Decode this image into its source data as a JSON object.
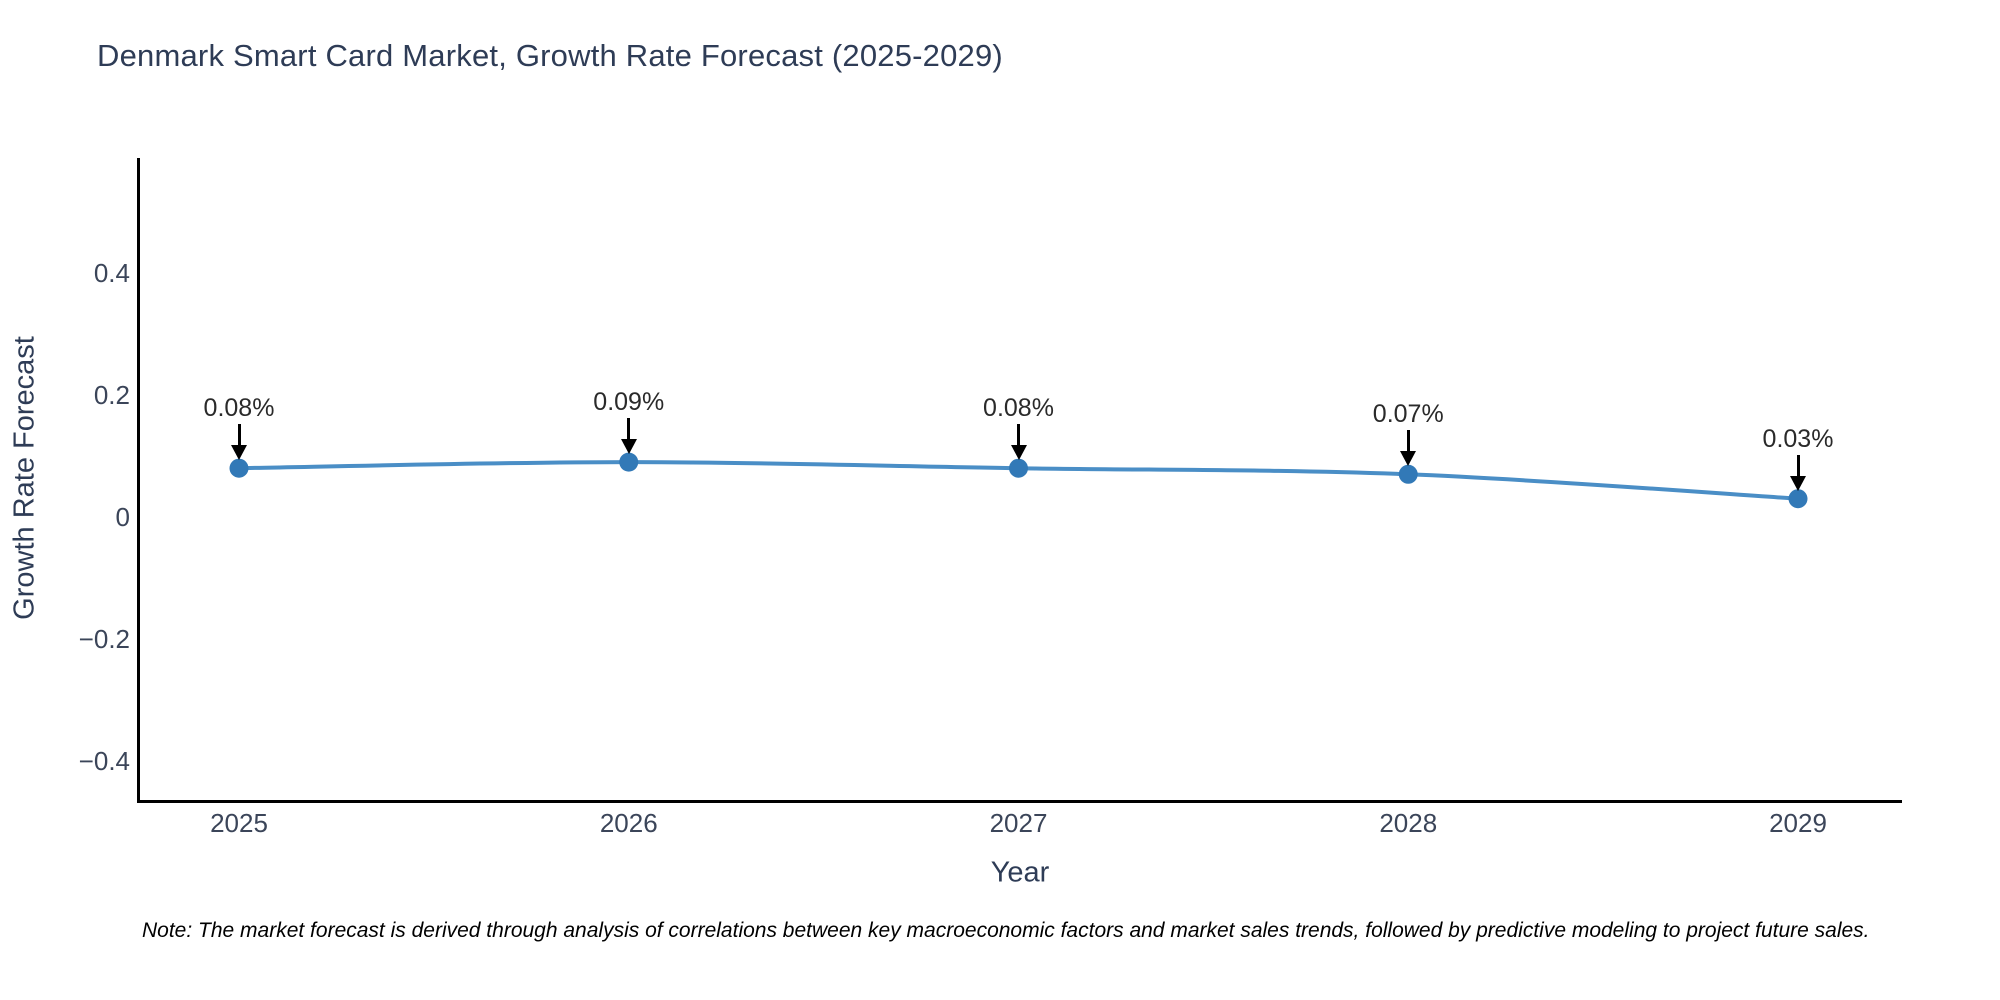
{
  "chart_data": {
    "type": "line",
    "title": "Denmark Smart Card Market, Growth Rate Forecast (2025-2029)",
    "xlabel": "Year",
    "ylabel": "Growth Rate Forecast",
    "x": [
      2025,
      2026,
      2027,
      2028,
      2029
    ],
    "values": [
      0.08,
      0.09,
      0.08,
      0.07,
      0.03
    ],
    "point_labels": [
      "0.08%",
      "0.09%",
      "0.08%",
      "0.07%",
      "0.03%"
    ],
    "x_tick_labels": [
      "2025",
      "2026",
      "2027",
      "2028",
      "2029"
    ],
    "y_tick_labels": [
      "0.4",
      "0.2",
      "0",
      "−0.2",
      "−0.4"
    ],
    "y_tick_values": [
      0.4,
      0.2,
      0,
      -0.2,
      -0.4
    ],
    "ylim": [
      -0.47,
      0.56
    ],
    "grid": false,
    "legend": false,
    "line_color": "#4a8ec6",
    "marker_color": "#3279b7",
    "arrow_color": "#000000",
    "axis_color": "#000000"
  },
  "note": "Note: The market forecast is derived through analysis of correlations between key macroeconomic factors and market sales trends, followed by predictive modeling to project future sales."
}
